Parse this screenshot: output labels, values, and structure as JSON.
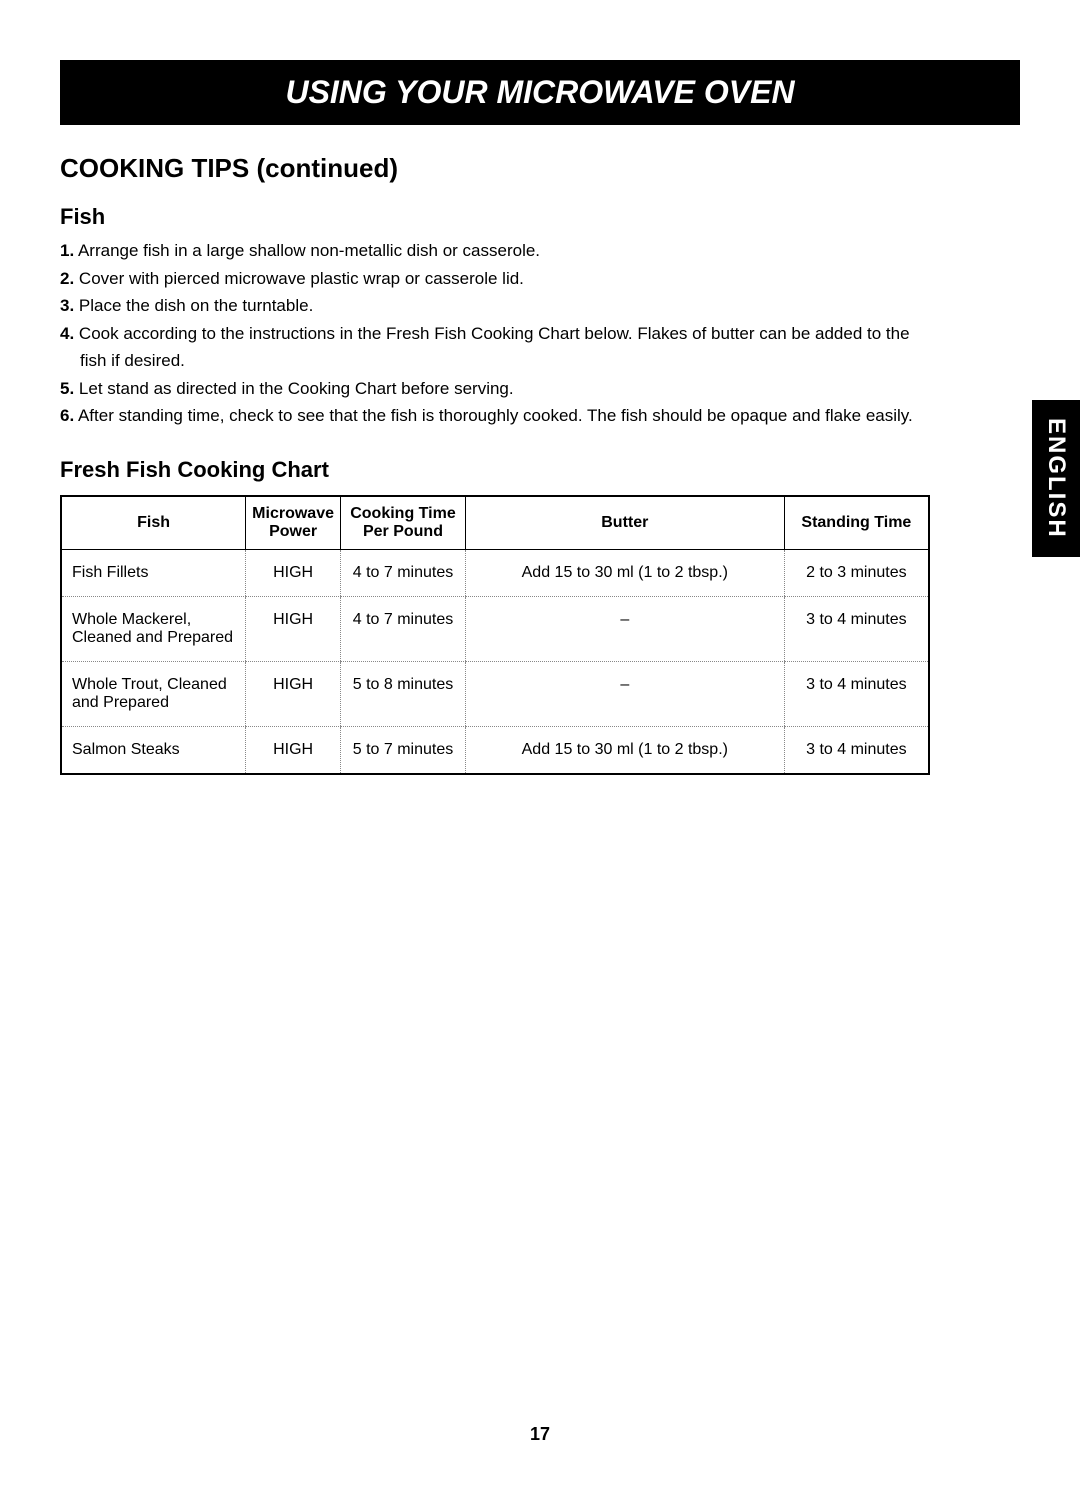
{
  "header": {
    "title": "USING YOUR MICROWAVE OVEN"
  },
  "section": {
    "title": "COOKING TIPS (continued)"
  },
  "fish_section": {
    "title": "Fish",
    "instructions": [
      {
        "num": "1.",
        "text": " Arrange fish in a large shallow non-metallic dish or casserole."
      },
      {
        "num": "2.",
        "text": " Cover with pierced microwave plastic wrap or casserole lid."
      },
      {
        "num": "3.",
        "text": " Place the dish on the turntable."
      },
      {
        "num": "4.",
        "text": " Cook according to the instructions in the Fresh Fish Cooking Chart below. Flakes of butter can be added to the"
      },
      {
        "num": "",
        "text": "fish if desired.",
        "indent": true
      },
      {
        "num": "5.",
        "text": " Let stand as directed in the Cooking Chart before serving."
      },
      {
        "num": "6.",
        "text": " After standing time, check to see that the fish is thoroughly cooked. The fish should be opaque and flake easily."
      }
    ]
  },
  "chart": {
    "title": "Fresh Fish Cooking Chart",
    "columns": {
      "fish": "Fish",
      "power": "Microwave Power",
      "time": "Cooking Time Per Pound",
      "butter": "Butter",
      "standing": "Standing Time"
    },
    "rows": [
      {
        "fish": "Fish Fillets",
        "power": "HIGH",
        "time": "4 to 7 minutes",
        "butter": "Add 15 to 30 ml (1 to 2 tbsp.)",
        "standing": "2 to 3 minutes"
      },
      {
        "fish": "Whole Mackerel, Cleaned and Prepared",
        "power": "HIGH",
        "time": "4 to 7 minutes",
        "butter": "–",
        "standing": "3 to 4 minutes"
      },
      {
        "fish": "Whole Trout, Cleaned and Prepared",
        "power": "HIGH",
        "time": "5 to 8 minutes",
        "butter": "–",
        "standing": "3 to 4 minutes"
      },
      {
        "fish": "Salmon Steaks",
        "power": "HIGH",
        "time": "5 to 7 minutes",
        "butter": "Add 15 to 30 ml (1 to 2 tbsp.)",
        "standing": "3 to 4 minutes"
      }
    ]
  },
  "side_tab": {
    "label": "ENGLISH"
  },
  "page_number": "17"
}
